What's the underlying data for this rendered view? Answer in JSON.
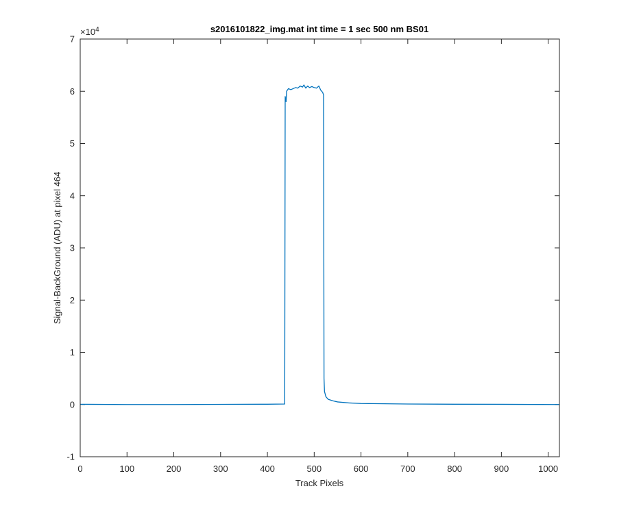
{
  "chart_data": {
    "type": "line",
    "title": "s2016101822_img.mat int time = 1 sec  500 nm BS01",
    "xlabel": "Track Pixels",
    "ylabel": "Signal-BackGround (ADU) at pixel 464",
    "y_exponent_label": "×10",
    "y_exponent_power": "4",
    "xlim": [
      0,
      1024
    ],
    "ylim": [
      -10000,
      70000
    ],
    "x_ticks": [
      0,
      100,
      200,
      300,
      400,
      500,
      600,
      700,
      800,
      900,
      1000
    ],
    "x_tick_labels": [
      "0",
      "100",
      "200",
      "300",
      "400",
      "500",
      "600",
      "700",
      "800",
      "900",
      "1000"
    ],
    "y_ticks": [
      -10000,
      0,
      10000,
      20000,
      30000,
      40000,
      50000,
      60000,
      70000
    ],
    "y_tick_labels": [
      "-1",
      "0",
      "1",
      "2",
      "3",
      "4",
      "5",
      "6",
      "7"
    ],
    "grid": false,
    "line_color": "#0072BD",
    "series": [
      {
        "values": [
          [
            0,
            50
          ],
          [
            100,
            0
          ],
          [
            200,
            0
          ],
          [
            300,
            30
          ],
          [
            400,
            60
          ],
          [
            437,
            100
          ],
          [
            438,
            59000
          ],
          [
            440,
            58000
          ],
          [
            441,
            60000
          ],
          [
            445,
            60500
          ],
          [
            450,
            60300
          ],
          [
            460,
            60700
          ],
          [
            465,
            60600
          ],
          [
            470,
            61000
          ],
          [
            475,
            60800
          ],
          [
            478,
            61200
          ],
          [
            482,
            60600
          ],
          [
            486,
            61000
          ],
          [
            490,
            60700
          ],
          [
            495,
            60900
          ],
          [
            500,
            60700
          ],
          [
            505,
            60600
          ],
          [
            510,
            61000
          ],
          [
            514,
            60200
          ],
          [
            518,
            59800
          ],
          [
            520,
            59300
          ],
          [
            521,
            5000
          ],
          [
            522,
            2500
          ],
          [
            525,
            1500
          ],
          [
            530,
            1000
          ],
          [
            540,
            700
          ],
          [
            550,
            500
          ],
          [
            575,
            300
          ],
          [
            600,
            200
          ],
          [
            700,
            100
          ],
          [
            800,
            60
          ],
          [
            900,
            40
          ],
          [
            1024,
            0
          ]
        ]
      }
    ]
  }
}
